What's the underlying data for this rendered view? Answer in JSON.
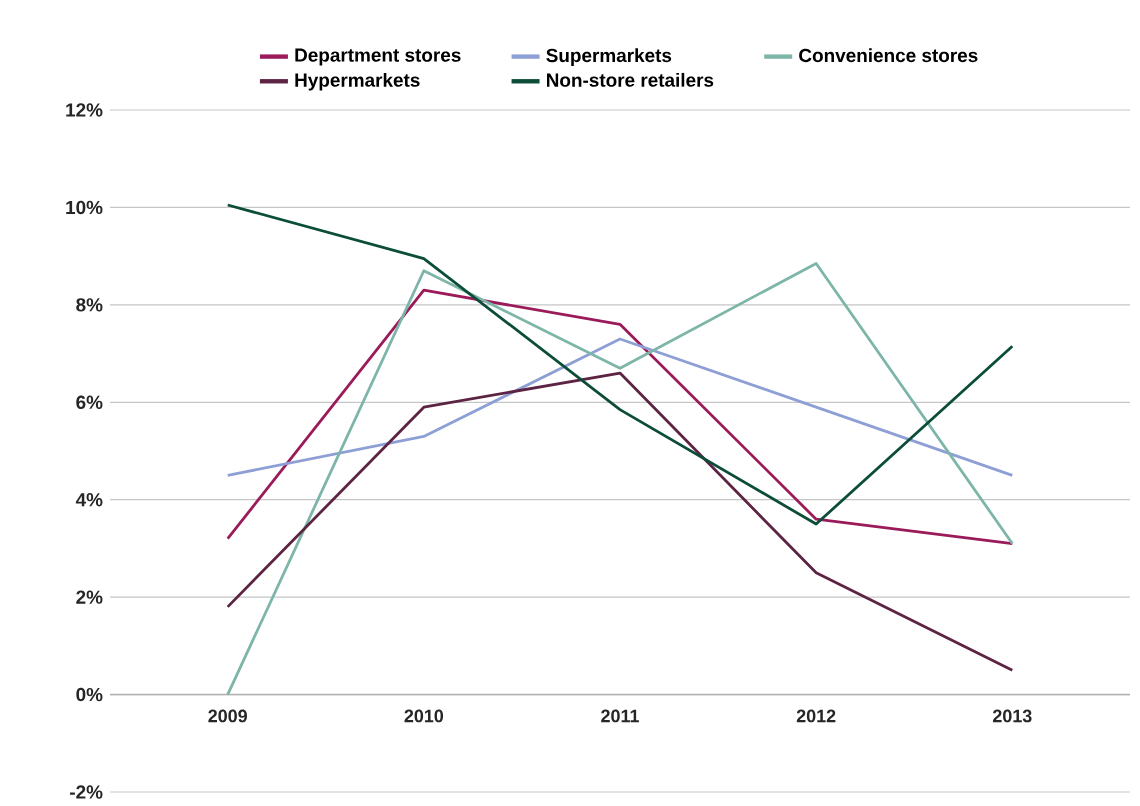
{
  "chart_data": {
    "type": "line",
    "categories": [
      "2009",
      "2010",
      "2011",
      "2012",
      "2013"
    ],
    "series": [
      {
        "name": "Department stores",
        "color": "#9b1b5a",
        "values": [
          3.2,
          8.3,
          7.6,
          3.6,
          3.1
        ]
      },
      {
        "name": "Supermarkets",
        "color": "#8e9fd5",
        "values": [
          4.5,
          5.3,
          7.3,
          5.9,
          4.5
        ]
      },
      {
        "name": "Convenience stores",
        "color": "#7db5a8",
        "values": [
          0,
          8.7,
          6.7,
          8.85,
          3.1
        ]
      },
      {
        "name": "Hypermarkets",
        "color": "#5c2442",
        "values": [
          1.8,
          5.9,
          6.6,
          2.5,
          0.5
        ]
      },
      {
        "name": "Non-store retailers",
        "color": "#0b4d38",
        "values": [
          10.05,
          8.95,
          5.85,
          3.5,
          7.15
        ]
      }
    ],
    "ylim": [
      -2,
      12
    ],
    "yticks": [
      {
        "value": -2,
        "label": "-2%"
      },
      {
        "value": 0,
        "label": "0%"
      },
      {
        "value": 2,
        "label": "2%"
      },
      {
        "value": 4,
        "label": "4%"
      },
      {
        "value": 6,
        "label": "6%"
      },
      {
        "value": 8,
        "label": "8%"
      },
      {
        "value": 10,
        "label": "10%"
      },
      {
        "value": 12,
        "label": "12%"
      }
    ],
    "grid": "y",
    "legend": "top"
  }
}
